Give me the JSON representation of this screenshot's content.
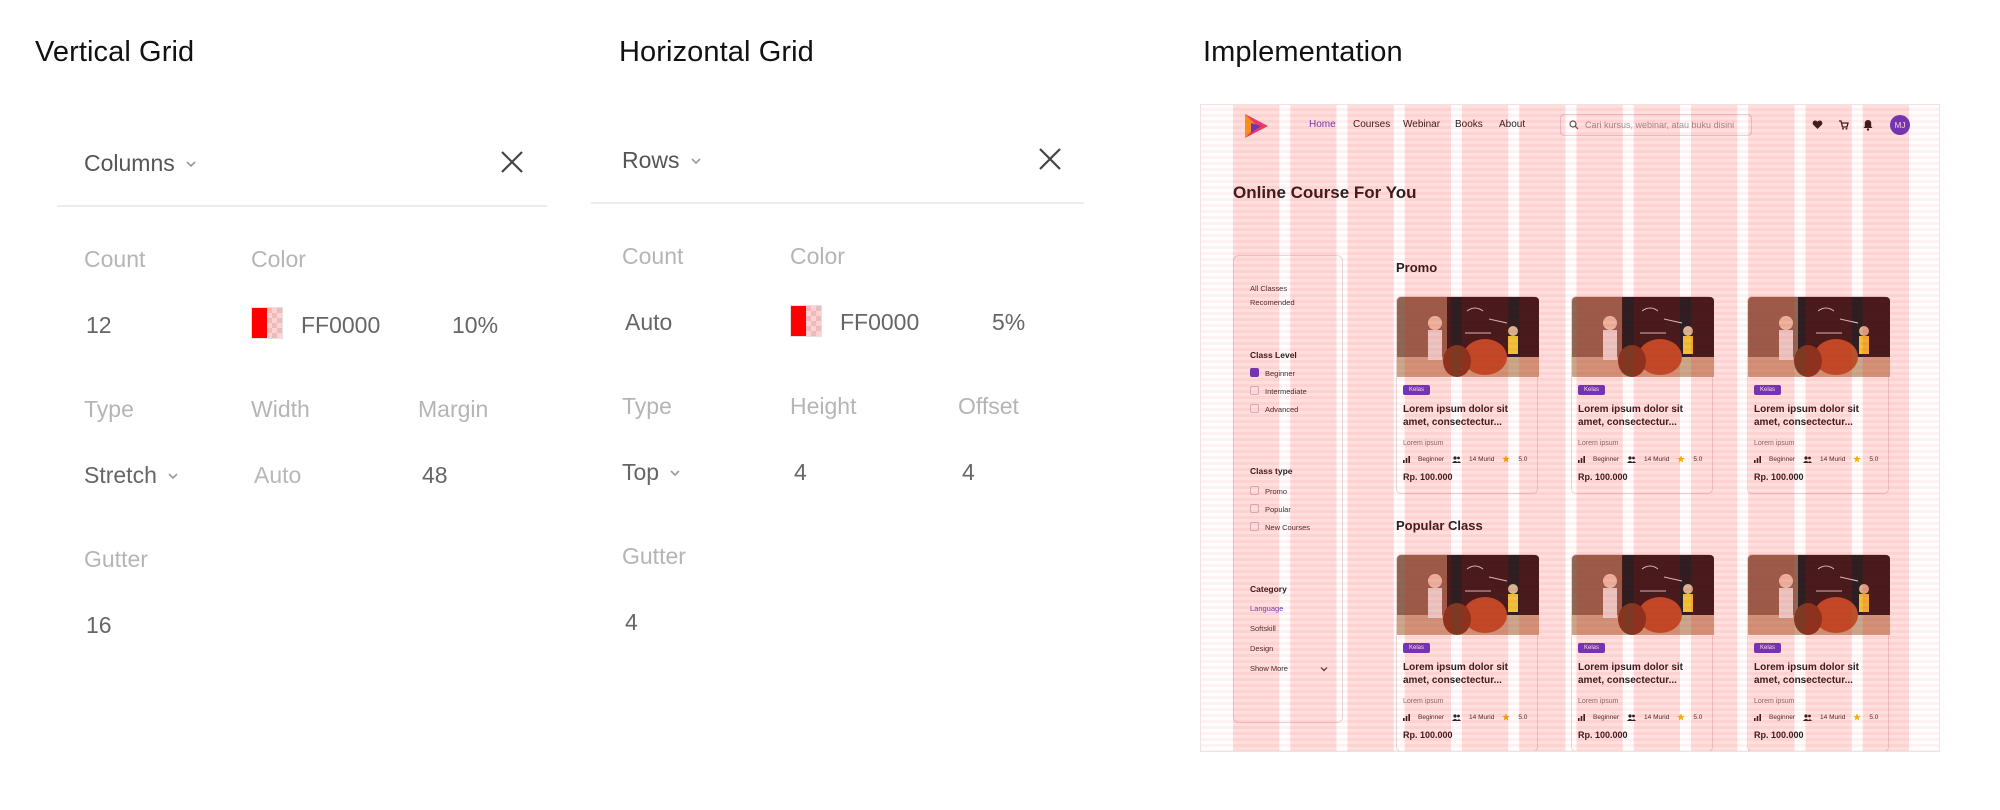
{
  "titles": {
    "vertical": "Vertical Grid",
    "horizontal": "Horizontal Grid",
    "implementation": "Implementation"
  },
  "vertical_grid": {
    "layout_type": "Columns",
    "count_label": "Count",
    "count": "12",
    "color_label": "Color",
    "color_hex": "FF0000",
    "opacity": "10%",
    "type_label": "Type",
    "type": "Stretch",
    "width_label": "Width",
    "width": "Auto",
    "margin_label": "Margin",
    "margin": "48",
    "gutter_label": "Gutter",
    "gutter": "16",
    "swatch_color": "#ff0000"
  },
  "horizontal_grid": {
    "layout_type": "Rows",
    "count_label": "Count",
    "count": "Auto",
    "color_label": "Color",
    "color_hex": "FF0000",
    "opacity": "5%",
    "type_label": "Type",
    "type": "Top",
    "height_label": "Height",
    "height": "4",
    "offset_label": "Offset",
    "offset": "4",
    "gutter_label": "Gutter",
    "gutter": "4",
    "swatch_color": "#ff0000"
  },
  "implementation": {
    "nav": {
      "links": [
        "Home",
        "Courses",
        "Webinar",
        "Books",
        "About"
      ],
      "search_placeholder": "Cari kursus, webinar, atau buku disini",
      "avatar_initials": "MJ"
    },
    "page_title": "Online Course For You",
    "sidebar": {
      "top_links": [
        "All Classes",
        "Recomended"
      ],
      "class_level_title": "Class Level",
      "class_levels": [
        {
          "label": "Beginner",
          "checked": true
        },
        {
          "label": "Intermediate",
          "checked": false
        },
        {
          "label": "Advanced",
          "checked": false
        }
      ],
      "class_type_title": "Class type",
      "class_types": [
        {
          "label": "Promo"
        },
        {
          "label": "Popular"
        },
        {
          "label": "New Courses"
        }
      ],
      "category_title": "Category",
      "categories": [
        {
          "label": "Language",
          "active": true
        },
        {
          "label": "Softskill",
          "active": false
        },
        {
          "label": "Design",
          "active": false
        }
      ],
      "show_more": "Show More"
    },
    "sections": [
      {
        "title": "Promo",
        "cards": [
          {
            "badge": "Kelas",
            "title": "Lorem ipsum dolor sit amet, consectectur...",
            "author": "Lorem ipsum",
            "level": "Beginner",
            "students": "14 Murid",
            "rating": "5.0",
            "price": "Rp. 100.000"
          },
          {
            "badge": "Kelas",
            "title": "Lorem ipsum dolor sit amet, consectectur...",
            "author": "Lorem ipsum",
            "level": "Beginner",
            "students": "14 Murid",
            "rating": "5.0",
            "price": "Rp. 100.000"
          },
          {
            "badge": "Kelas",
            "title": "Lorem ipsum dolor sit amet, consectectur...",
            "author": "Lorem ipsum",
            "level": "Beginner",
            "students": "14 Murid",
            "rating": "5.0",
            "price": "Rp. 100.000"
          }
        ]
      },
      {
        "title": "Popular Class",
        "cards": [
          {
            "badge": "Kelas",
            "title": "Lorem ipsum dolor sit amet, consectectur...",
            "author": "Lorem ipsum",
            "level": "Beginner",
            "students": "14 Murid",
            "rating": "5.0",
            "price": "Rp. 100.000"
          },
          {
            "badge": "Kelas",
            "title": "Lorem ipsum dolor sit amet, consectectur...",
            "author": "Lorem ipsum",
            "level": "Beginner",
            "students": "14 Murid",
            "rating": "5.0",
            "price": "Rp. 100.000"
          },
          {
            "badge": "Kelas",
            "title": "Lorem ipsum dolor sit amet, consectectur...",
            "author": "Lorem ipsum",
            "level": "Beginner",
            "students": "14 Murid",
            "rating": "5.0",
            "price": "Rp. 100.000"
          }
        ]
      }
    ],
    "accent_color": "#5b3fd1",
    "grid_overlay_color": "#ff0000"
  }
}
